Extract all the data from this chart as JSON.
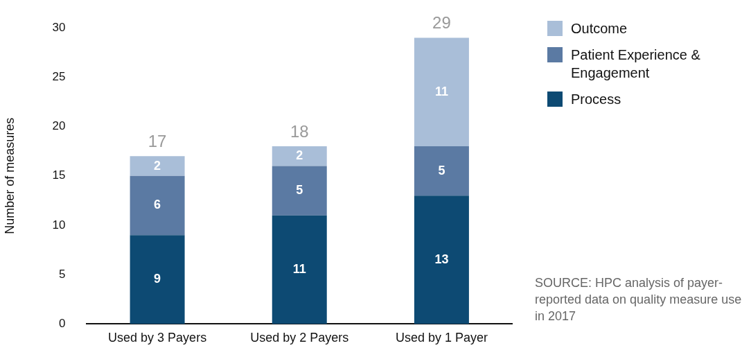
{
  "chart_data": {
    "type": "bar",
    "stacked": true,
    "ylabel": "Number of measures",
    "categories": [
      "Used by 3 Payers",
      "Used by 2 Payers",
      "Used by 1 Payer"
    ],
    "series": [
      {
        "name": "Process",
        "color": "#0d4a73",
        "values": [
          9,
          11,
          13
        ]
      },
      {
        "name": "Patient Experience & Engagement",
        "color": "#5b7aa3",
        "values": [
          6,
          5,
          5
        ]
      },
      {
        "name": "Outcome",
        "color": "#a9bed8",
        "values": [
          2,
          2,
          11
        ]
      }
    ],
    "ylim": [
      0,
      30
    ],
    "yticks": [
      0,
      5,
      10,
      15,
      20,
      25,
      30
    ],
    "grid": false,
    "legend": "top right",
    "data_labels": true,
    "totals": [
      "17",
      "18",
      "29"
    ],
    "annotations": [
      "SOURCE: HPC analysis of payer-reported data on quality measure use in 2017"
    ]
  }
}
